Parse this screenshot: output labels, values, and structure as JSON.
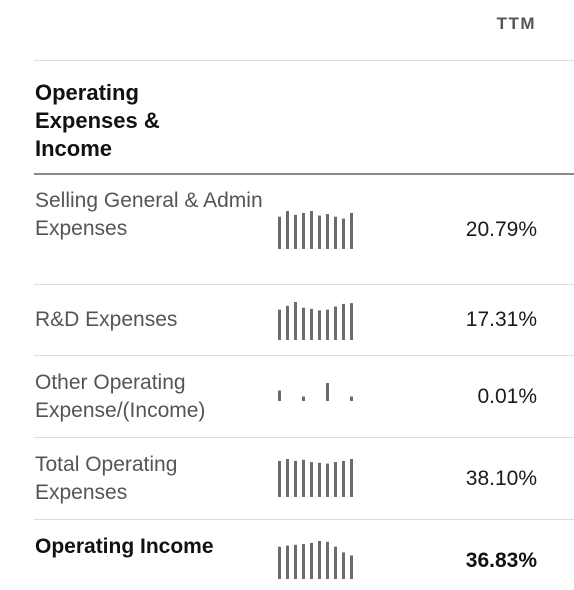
{
  "header": {
    "period_label": "TTM"
  },
  "section": {
    "title": "Operating Expenses & Income"
  },
  "colors": {
    "bar": "#6b6b6b",
    "label": "#555555",
    "bold_text": "#111111"
  },
  "rows": [
    {
      "label": "Selling General & Admin Expenses",
      "value": "20.79%",
      "bold": false,
      "trend": [
        0.85,
        1.0,
        0.9,
        0.95,
        1.0,
        0.88,
        0.92,
        0.85,
        0.8,
        0.95
      ]
    },
    {
      "label": "R&D Expenses",
      "value": "17.31%",
      "bold": false,
      "trend": [
        0.8,
        0.9,
        1.0,
        0.85,
        0.82,
        0.78,
        0.8,
        0.88,
        0.95,
        0.97
      ]
    },
    {
      "label": "Other Operating Expense/(Income)",
      "value": "0.01%",
      "bold": false,
      "trend": [
        0.35,
        0.0,
        0.0,
        0.15,
        0.0,
        0.0,
        0.6,
        0.0,
        0.0,
        0.15
      ]
    },
    {
      "label": "Total Operating Expenses",
      "value": "38.10%",
      "bold": false,
      "trend": [
        0.95,
        1.0,
        0.95,
        0.98,
        0.92,
        0.9,
        0.88,
        0.92,
        0.95,
        1.0
      ]
    },
    {
      "label": "Operating Income",
      "value": "36.83%",
      "bold": true,
      "trend": [
        0.85,
        0.88,
        0.9,
        0.92,
        0.95,
        1.0,
        0.98,
        0.85,
        0.7,
        0.62
      ]
    }
  ]
}
